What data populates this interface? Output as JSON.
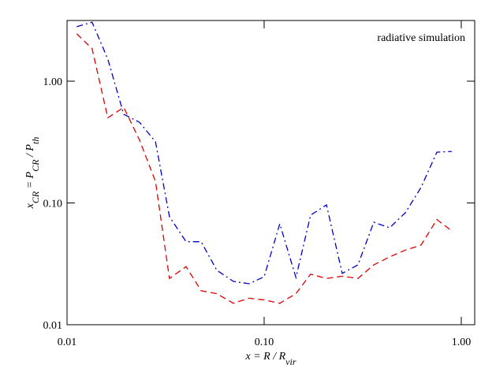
{
  "chart_data": {
    "type": "line",
    "annotation": "radiative simulation",
    "xlabel": [
      {
        "text": "x = R / R"
      },
      {
        "text": "vir",
        "sub": true
      }
    ],
    "ylabel": [
      {
        "text": "x"
      },
      {
        "text": "CR",
        "sub": true
      },
      {
        "text": " = P"
      },
      {
        "text": "CR",
        "sub": true
      },
      {
        "text": " / P"
      },
      {
        "text": "th",
        "sub": true
      }
    ],
    "x": [
      0.0112,
      0.0134,
      0.0161,
      0.0194,
      0.0233,
      0.0281,
      0.0331,
      0.0402,
      0.0479,
      0.0575,
      0.0698,
      0.0839,
      0.1,
      0.12,
      0.145,
      0.172,
      0.207,
      0.249,
      0.299,
      0.36,
      0.433,
      0.52,
      0.625,
      0.752,
      0.895
    ],
    "series": [
      {
        "color": "#0000cc",
        "dash": "dashdot",
        "values": [
          2.8,
          3.05,
          1.52,
          0.535,
          0.46,
          0.318,
          0.077,
          0.048,
          0.048,
          0.028,
          0.0227,
          0.0217,
          0.0248,
          0.0674,
          0.0244,
          0.0794,
          0.0963,
          0.0264,
          0.031,
          0.0694,
          0.0625,
          0.083,
          0.134,
          0.261,
          0.265
        ]
      },
      {
        "color": "#dd0000",
        "dash": "dashed",
        "values": [
          2.45,
          1.85,
          0.5,
          0.61,
          0.33,
          0.15,
          0.024,
          0.03,
          0.019,
          0.018,
          0.015,
          0.0165,
          0.016,
          0.015,
          0.018,
          0.026,
          0.024,
          0.025,
          0.024,
          0.031,
          0.036,
          0.041,
          0.045,
          0.073,
          0.059
        ]
      }
    ],
    "xlog": true,
    "ylog": true,
    "xlim": [
      0.01,
      1.17
    ],
    "ylim": [
      0.01,
      3.15
    ],
    "xticks": [
      {
        "value": 0.01,
        "label": "0.01"
      },
      {
        "value": 0.1,
        "label": "0.10"
      },
      {
        "value": 1,
        "label": "1.00"
      }
    ],
    "yticks": [
      {
        "value": 0.01,
        "label": "0.01"
      },
      {
        "value": 0.1,
        "label": "0.10"
      },
      {
        "value": 1,
        "label": "1.00"
      }
    ]
  }
}
